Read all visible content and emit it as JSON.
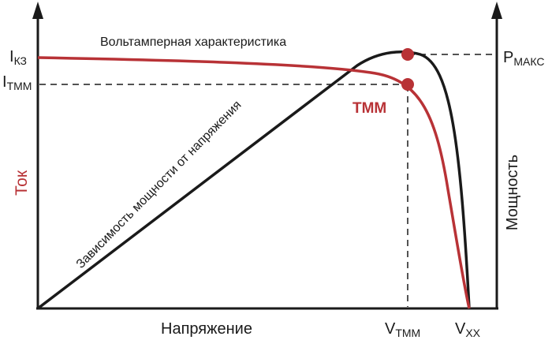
{
  "colors": {
    "current_curve": "#b83236",
    "power_curve": "#1a1a1a",
    "axis": "#1a1a1a",
    "background": "#ffffff"
  },
  "labels": {
    "i_sc_main": "I",
    "i_sc_sub": "КЗ",
    "i_mpp_main": "I",
    "i_mpp_sub": "ТММ",
    "p_max_main": "P",
    "p_max_sub": "МАКС",
    "v_mpp_main": "V",
    "v_mpp_sub": "ТММ",
    "v_oc_main": "V",
    "v_oc_sub": "XX",
    "mpp_marker": "ТММ",
    "iv_curve": "Вольтамперная характеристика",
    "power_curve": "Зависимость мощности от напряжения",
    "x_axis": "Напряжение",
    "y_axis_left": "Ток",
    "y_axis_right": "Мощность"
  }
}
